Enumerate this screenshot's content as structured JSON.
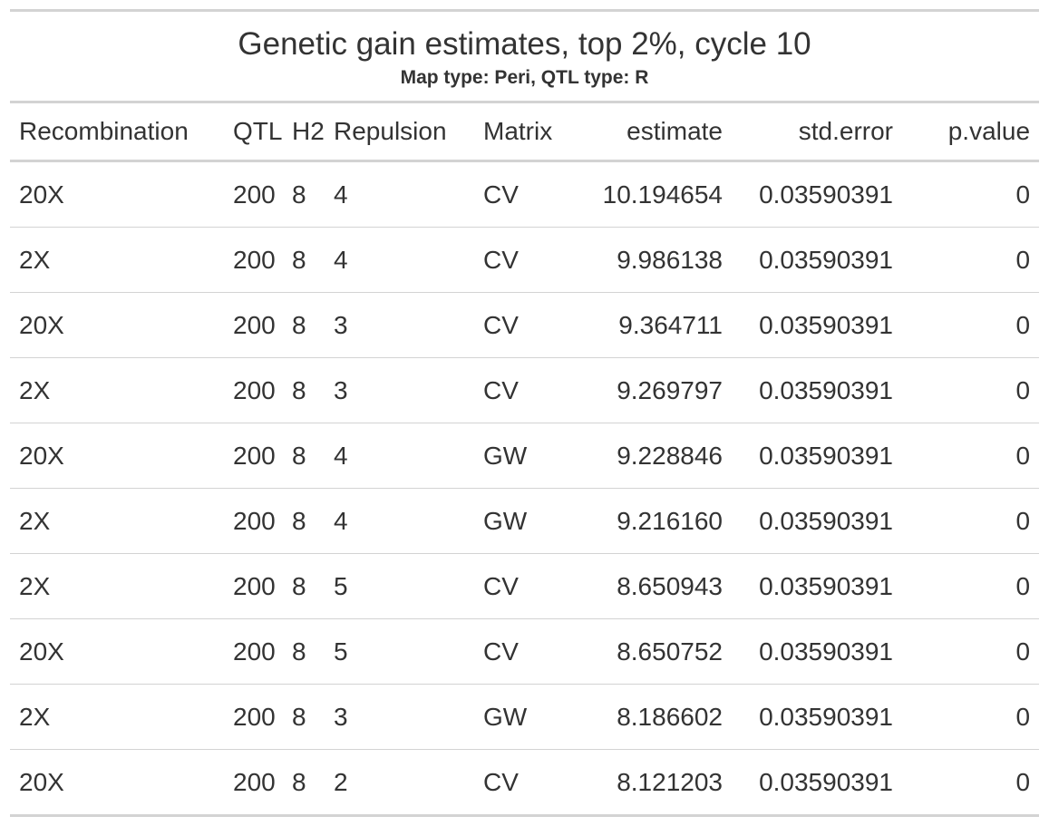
{
  "table": {
    "title": "Genetic gain estimates, top 2%, cycle 10",
    "subtitle": "Map type: Peri, QTL type: R",
    "columns": [
      "Recombination",
      "QTL",
      "H2",
      "Repulsion",
      "Matrix",
      "estimate",
      "std.error",
      "p.value"
    ],
    "rows": [
      [
        "20X",
        "200",
        "8",
        "4",
        "CV",
        "10.194654",
        "0.03590391",
        "0"
      ],
      [
        "2X",
        "200",
        "8",
        "4",
        "CV",
        "9.986138",
        "0.03590391",
        "0"
      ],
      [
        "20X",
        "200",
        "8",
        "3",
        "CV",
        "9.364711",
        "0.03590391",
        "0"
      ],
      [
        "2X",
        "200",
        "8",
        "3",
        "CV",
        "9.269797",
        "0.03590391",
        "0"
      ],
      [
        "20X",
        "200",
        "8",
        "4",
        "GW",
        "9.228846",
        "0.03590391",
        "0"
      ],
      [
        "2X",
        "200",
        "8",
        "4",
        "GW",
        "9.216160",
        "0.03590391",
        "0"
      ],
      [
        "2X",
        "200",
        "8",
        "5",
        "CV",
        "8.650943",
        "0.03590391",
        "0"
      ],
      [
        "20X",
        "200",
        "8",
        "5",
        "CV",
        "8.650752",
        "0.03590391",
        "0"
      ],
      [
        "2X",
        "200",
        "8",
        "3",
        "GW",
        "8.186602",
        "0.03590391",
        "0"
      ],
      [
        "20X",
        "200",
        "8",
        "2",
        "CV",
        "8.121203",
        "0.03590391",
        "0"
      ]
    ]
  }
}
